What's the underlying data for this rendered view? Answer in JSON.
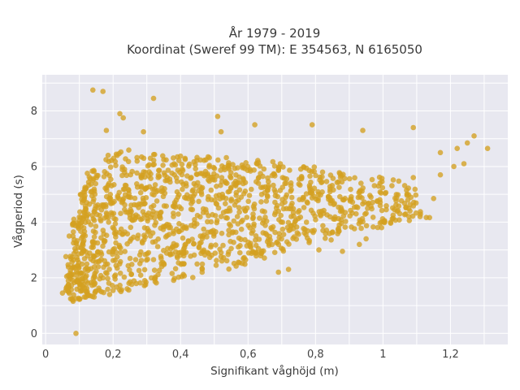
{
  "chart_data": {
    "type": "scatter",
    "title": "År 1979 - 2019",
    "subtitle": "Koordinat (Sweref 99 TM): E 354563, N 6165050",
    "xlabel": "Signifikant våghöjd (m)",
    "ylabel": "Vågperiod (s)",
    "xlim": [
      -0.01,
      1.37
    ],
    "ylim": [
      -0.4,
      9.3
    ],
    "x_ticks": [
      0,
      0.2,
      0.4,
      0.6,
      0.8,
      1,
      1.2
    ],
    "x_tick_labels": [
      "0",
      "0,2",
      "0,4",
      "0,6",
      "0,8",
      "1",
      "1,2"
    ],
    "y_ticks": [
      0,
      2,
      4,
      6,
      8
    ],
    "y_tick_labels": [
      "0",
      "2",
      "4",
      "6",
      "8"
    ],
    "grid": true,
    "marker_color": "#D4A020",
    "background_color": "#E8E8F0",
    "series": [
      {
        "points": [
          [
            0.09,
            0.0
          ],
          [
            0.14,
            8.75
          ],
          [
            0.17,
            8.7
          ],
          [
            0.32,
            8.45
          ],
          [
            0.22,
            7.9
          ],
          [
            0.23,
            7.75
          ],
          [
            0.51,
            7.8
          ],
          [
            0.18,
            7.3
          ],
          [
            0.29,
            7.25
          ],
          [
            0.52,
            7.25
          ],
          [
            0.62,
            7.5
          ],
          [
            0.79,
            7.5
          ],
          [
            0.94,
            7.3
          ],
          [
            1.09,
            7.4
          ],
          [
            1.27,
            7.1
          ],
          [
            1.31,
            6.65
          ],
          [
            1.25,
            6.85
          ],
          [
            1.22,
            6.65
          ],
          [
            1.17,
            6.5
          ],
          [
            1.24,
            6.1
          ],
          [
            1.21,
            6.0
          ],
          [
            1.17,
            5.7
          ],
          [
            1.09,
            5.6
          ],
          [
            1.07,
            5.15
          ],
          [
            1.15,
            4.85
          ],
          [
            1.08,
            4.4
          ],
          [
            1.11,
            4.2
          ],
          [
            1.05,
            4.3
          ],
          [
            1.03,
            4.25
          ],
          [
            0.93,
            3.2
          ],
          [
            0.95,
            3.4
          ],
          [
            0.81,
            3.0
          ],
          [
            0.88,
            2.95
          ],
          [
            0.69,
            2.2
          ],
          [
            0.72,
            2.3
          ],
          [
            0.07,
            3.5
          ],
          [
            0.05,
            1.45
          ],
          [
            0.06,
            1.55
          ],
          [
            0.08,
            1.2
          ]
        ],
        "density_bands": [
          [
            0.06,
            1.15,
            2.9
          ],
          [
            0.08,
            1.15,
            4.2
          ],
          [
            0.1,
            1.2,
            5.3
          ],
          [
            0.12,
            1.25,
            6.0
          ],
          [
            0.15,
            1.35,
            6.5
          ],
          [
            0.2,
            1.5,
            6.6
          ],
          [
            0.25,
            1.65,
            6.5
          ],
          [
            0.3,
            1.8,
            6.5
          ],
          [
            0.35,
            1.9,
            6.4
          ],
          [
            0.4,
            2.0,
            6.4
          ],
          [
            0.45,
            2.15,
            6.4
          ],
          [
            0.5,
            2.3,
            6.4
          ],
          [
            0.55,
            2.4,
            6.3
          ],
          [
            0.6,
            2.6,
            6.3
          ],
          [
            0.65,
            2.75,
            6.2
          ],
          [
            0.7,
            2.95,
            6.0
          ],
          [
            0.75,
            3.1,
            6.0
          ],
          [
            0.8,
            3.35,
            5.9
          ],
          [
            0.85,
            3.5,
            5.8
          ],
          [
            0.9,
            3.65,
            5.7
          ],
          [
            0.95,
            3.8,
            5.65
          ],
          [
            1.0,
            3.95,
            5.55
          ],
          [
            1.05,
            4.05,
            5.4
          ],
          [
            1.1,
            4.15,
            4.4
          ]
        ]
      }
    ]
  }
}
